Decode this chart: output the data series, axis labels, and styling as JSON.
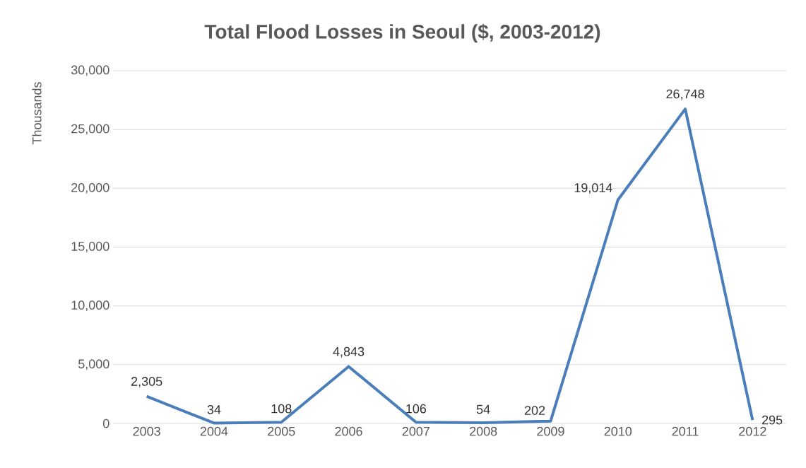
{
  "chart_data": {
    "type": "line",
    "title": "Total Flood Losses in Seoul ($, 2003-2012)",
    "ylabel": "Thousands",
    "categories": [
      "2003",
      "2004",
      "2005",
      "2006",
      "2007",
      "2008",
      "2009",
      "2010",
      "2011",
      "2012"
    ],
    "values": [
      2305,
      34,
      108,
      4843,
      106,
      54,
      202,
      19014,
      26748,
      295
    ],
    "value_labels": [
      "2,305",
      "34",
      "108",
      "4,843",
      "106",
      "54",
      "202",
      "19,014",
      "26,748",
      "295"
    ],
    "color": "#4a7ebb",
    "ylim": [
      0,
      30000
    ],
    "yticks": [
      0,
      {
        "value": 5000,
        "label": "5,000"
      },
      {
        "value": 10000,
        "label": "10,000"
      },
      {
        "value": 15000,
        "label": "15,000"
      },
      {
        "value": 20000,
        "label": "20,000"
      },
      {
        "value": 25000,
        "label": "25,000"
      },
      {
        "value": 30000,
        "label": "30,000"
      }
    ],
    "grid": "y",
    "marker": "none",
    "line_style": "solid"
  }
}
